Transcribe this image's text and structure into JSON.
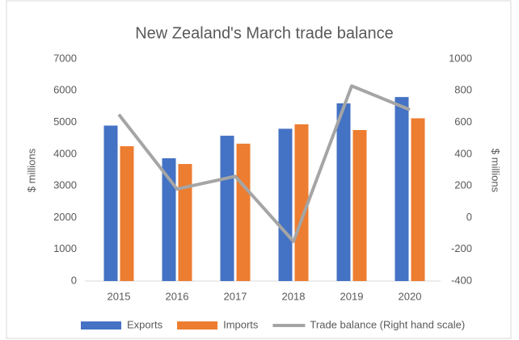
{
  "chart_data": {
    "type": "bar_line",
    "title": "New Zealand's March trade balance",
    "categories": [
      "2015",
      "2016",
      "2017",
      "2018",
      "2019",
      "2020"
    ],
    "ylabel": "$ millions",
    "y2label": "$ millions",
    "ylim": [
      0,
      7000
    ],
    "yticks": [
      0,
      1000,
      2000,
      3000,
      4000,
      5000,
      6000,
      7000
    ],
    "y2lim": [
      -400,
      1000
    ],
    "y2ticks": [
      -400,
      -200,
      0,
      200,
      400,
      600,
      800,
      1000
    ],
    "grid": false,
    "legend": "bottom",
    "series": [
      {
        "name": "Exports",
        "type": "bar",
        "color": "#4472c4",
        "values": [
          4900,
          3870,
          4580,
          4800,
          5600,
          5800
        ]
      },
      {
        "name": "Imports",
        "type": "bar",
        "color": "#ed7d31",
        "values": [
          4250,
          3690,
          4330,
          4940,
          4760,
          5130
        ]
      },
      {
        "name": "Trade balance (Right hand scale)",
        "type": "line",
        "axis": "y2",
        "color": "#a5a5a5",
        "values": [
          650,
          180,
          260,
          -150,
          830,
          680
        ]
      }
    ]
  }
}
